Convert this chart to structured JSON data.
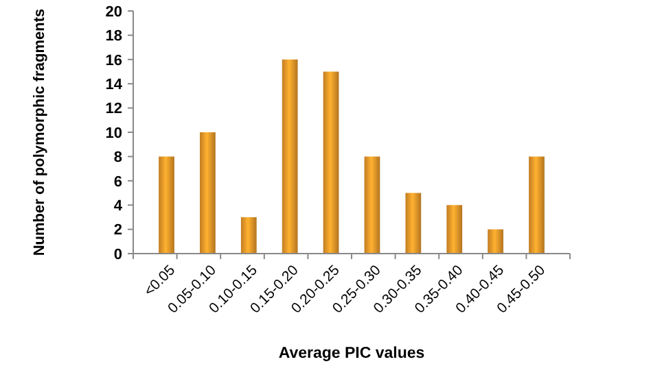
{
  "chart_data": {
    "type": "bar",
    "xlabel": "Average PIC values",
    "ylabel": "Number of polymorphic fragments",
    "categories": [
      "<0.05",
      "0.05-0.10",
      "0.10-0.15",
      "0.15-0.20",
      "0.20-0.25",
      "0.25-0.30",
      "0.30-0.35",
      "0.35-0.40",
      "0.40-0.45",
      "0.45-0.50"
    ],
    "values": [
      8,
      10,
      3,
      16,
      15,
      8,
      5,
      4,
      2,
      8
    ],
    "color": "#f09a2a",
    "ylim": [
      0,
      20
    ],
    "yticks": [
      0,
      2,
      4,
      6,
      8,
      10,
      12,
      14,
      16,
      18,
      20
    ],
    "grid": false
  }
}
